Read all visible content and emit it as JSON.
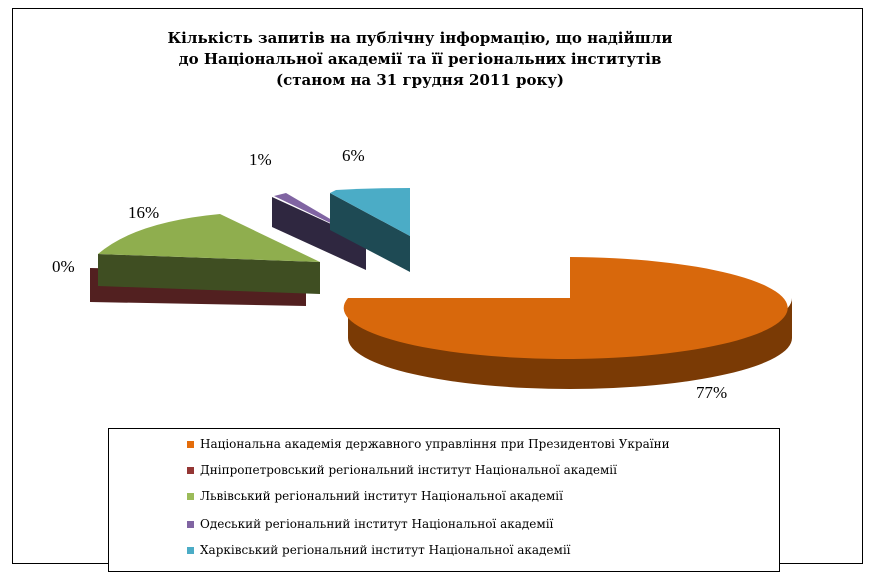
{
  "chart_data": {
    "type": "pie",
    "title": [
      "Кількість запитів на публічну інформацію, що надійшли",
      "до Національної академії та її регіональних інститутів",
      "(станом на 31 грудня 2011 року)"
    ],
    "categories": [
      "Національна академія державного управління при Президентові України",
      "Дніпропетровський регіональний інститут Національної академії",
      "Львівський регіональний інститут Національної академії",
      "Одеський регіональний інститут Національної академії",
      "Харківський регіональний інститут Національної академії"
    ],
    "values": [
      77,
      0,
      16,
      1,
      6
    ],
    "labels": [
      "77%",
      "0%",
      "16%",
      "1%",
      "6%"
    ],
    "colors": [
      "#E46C0A",
      "#943634",
      "#9BBB59",
      "#8064A2",
      "#4BACC6"
    ],
    "legend_position": "bottom"
  }
}
